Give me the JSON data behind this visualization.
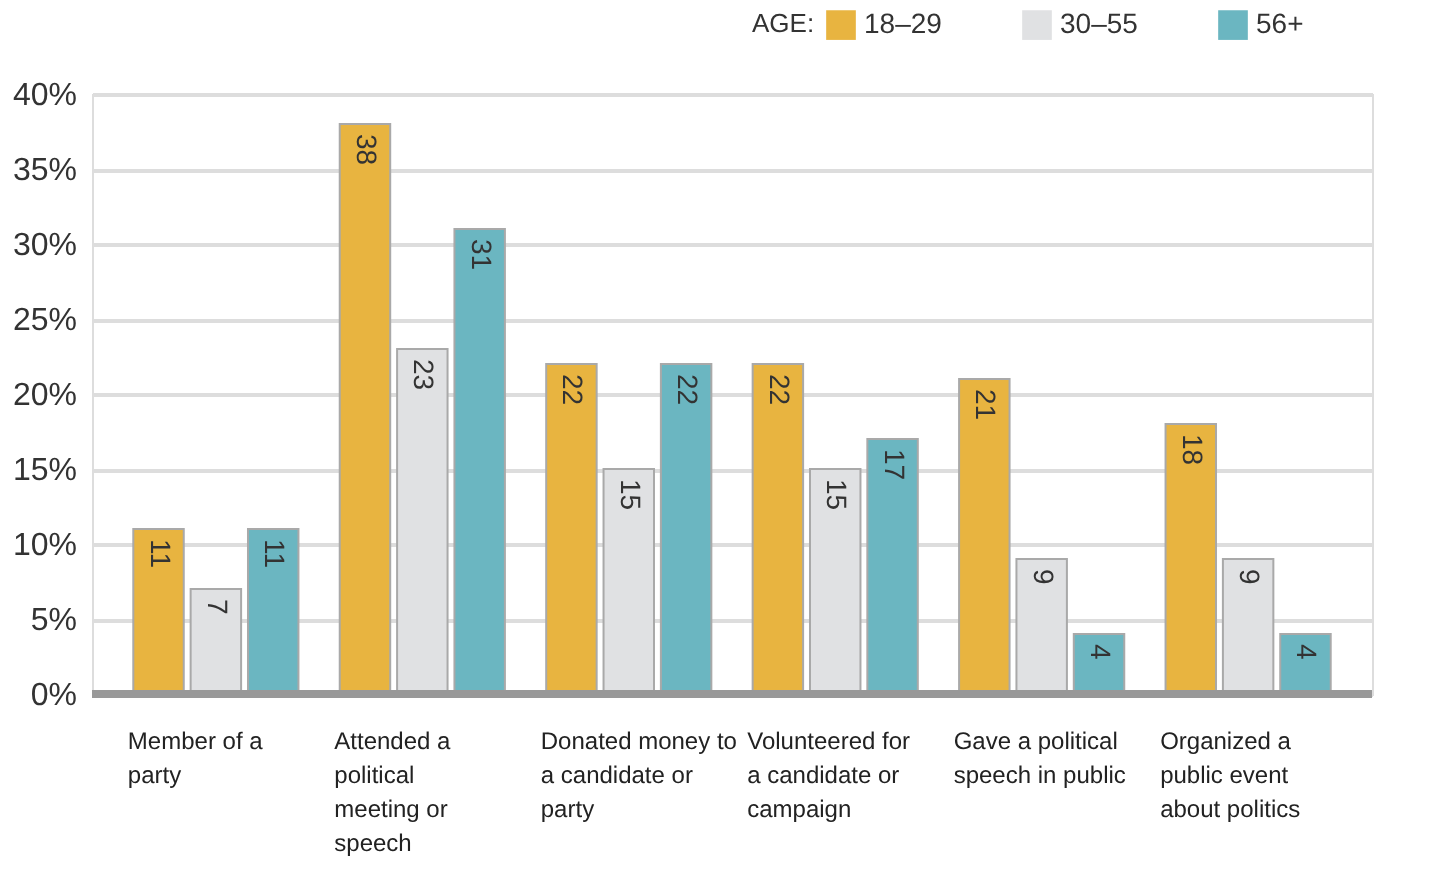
{
  "chart_data": {
    "type": "bar",
    "categories": [
      "Member of a party",
      "Attended a political meeting or speech",
      "Donated money to a candidate or party",
      "Volunteered for a candidate or campaign",
      "Gave a political speech in public",
      "Organized a public event about politics"
    ],
    "legend_title": "AGE:",
    "series": [
      {
        "name": "18–29",
        "color": "#e8b440",
        "values": [
          11,
          38,
          22,
          22,
          21,
          18
        ]
      },
      {
        "name": "30–55",
        "color": "#e0e1e3",
        "values": [
          7,
          23,
          15,
          15,
          9,
          9
        ]
      },
      {
        "name": "56+",
        "color": "#6bb6c1",
        "values": [
          11,
          31,
          22,
          17,
          4,
          4
        ]
      }
    ],
    "ylim": [
      0,
      40
    ],
    "yticks": [
      {
        "value": 0,
        "label": "0%"
      },
      {
        "value": 5,
        "label": "5%"
      },
      {
        "value": 10,
        "label": "10%"
      },
      {
        "value": 15,
        "label": "15%"
      },
      {
        "value": 20,
        "label": "20%"
      },
      {
        "value": 25,
        "label": "25%"
      },
      {
        "value": 30,
        "label": "30%"
      },
      {
        "value": 35,
        "label": "35%"
      },
      {
        "value": 40,
        "label": "40%"
      }
    ],
    "grid": "y",
    "legend": "top right",
    "data_labels": true
  }
}
